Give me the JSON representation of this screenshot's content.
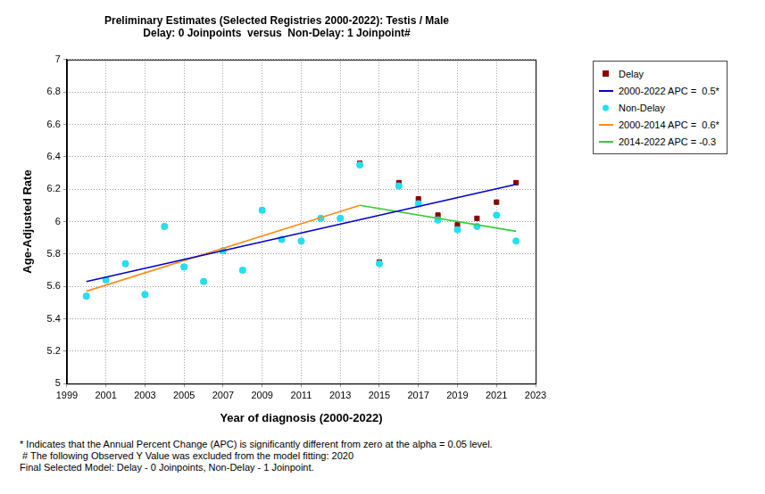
{
  "chart_data": {
    "type": "scatter",
    "title": "Preliminary Estimates (Selected Registries 2000-2022): Testis / Male",
    "subtitle": "Delay: 0 Joinpoints  versus  Non-Delay: 1 Joinpoint#",
    "x_label": "Year of diagnosis (2000-2022)",
    "y_label": "Age-Adjusted Rate",
    "x": [
      2000,
      2001,
      2002,
      2003,
      2004,
      2005,
      2006,
      2007,
      2008,
      2009,
      2010,
      2011,
      2012,
      2013,
      2014,
      2015,
      2016,
      2017,
      2018,
      2019,
      2020,
      2021,
      2022
    ],
    "series": [
      {
        "name": "Delay",
        "type": "scatter",
        "marker": "square",
        "color": "#8b0000",
        "values": [
          5.54,
          5.64,
          5.74,
          5.55,
          5.97,
          5.72,
          5.63,
          5.82,
          5.7,
          6.07,
          5.89,
          5.88,
          6.02,
          6.02,
          6.36,
          5.75,
          6.24,
          6.14,
          6.04,
          5.98,
          6.02,
          6.12,
          6.24
        ]
      },
      {
        "name": "2000-2022 APC =  0.5*",
        "type": "line",
        "color": "#0000cd",
        "line_style": "solid",
        "x": [
          2000,
          2022
        ],
        "values": [
          5.63,
          6.23
        ]
      },
      {
        "name": "Non-Delay",
        "type": "scatter",
        "marker": "circle",
        "color": "#22e0f0",
        "values": [
          5.54,
          5.64,
          5.74,
          5.55,
          5.97,
          5.72,
          5.63,
          5.82,
          5.7,
          6.07,
          5.89,
          5.88,
          6.02,
          6.02,
          6.35,
          5.74,
          6.22,
          6.11,
          6.01,
          5.95,
          5.97,
          6.04,
          5.88
        ]
      },
      {
        "name": "2000-2014 APC =  0.6*",
        "type": "line",
        "color": "#ff8c1a",
        "line_style": "solid",
        "x": [
          2000,
          2014
        ],
        "values": [
          5.57,
          6.1
        ]
      },
      {
        "name": "2014-2022 APC = -0.3",
        "type": "line",
        "color": "#33cc33",
        "line_style": "solid",
        "x": [
          2014,
          2022
        ],
        "values": [
          6.1,
          5.94
        ]
      }
    ],
    "xlim": [
      1999,
      2023
    ],
    "xticks": [
      1999,
      2001,
      2003,
      2005,
      2007,
      2009,
      2011,
      2013,
      2015,
      2017,
      2019,
      2021,
      2023
    ],
    "ylim": [
      5,
      7
    ],
    "yticks": [
      5,
      5.2,
      5.4,
      5.6,
      5.8,
      6,
      6.2,
      6.4,
      6.6,
      6.8,
      7
    ],
    "grid": true,
    "legend": "right",
    "annotations": [
      "* Indicates that the Annual Percent Change (APC) is significantly different from zero at the alpha = 0.05 level.",
      " # The following Observed Y Value was excluded from the model fitting: 2020",
      "Final Selected Model: Delay - 0 Joinpoints, Non-Delay - 1 Joinpoint."
    ]
  }
}
